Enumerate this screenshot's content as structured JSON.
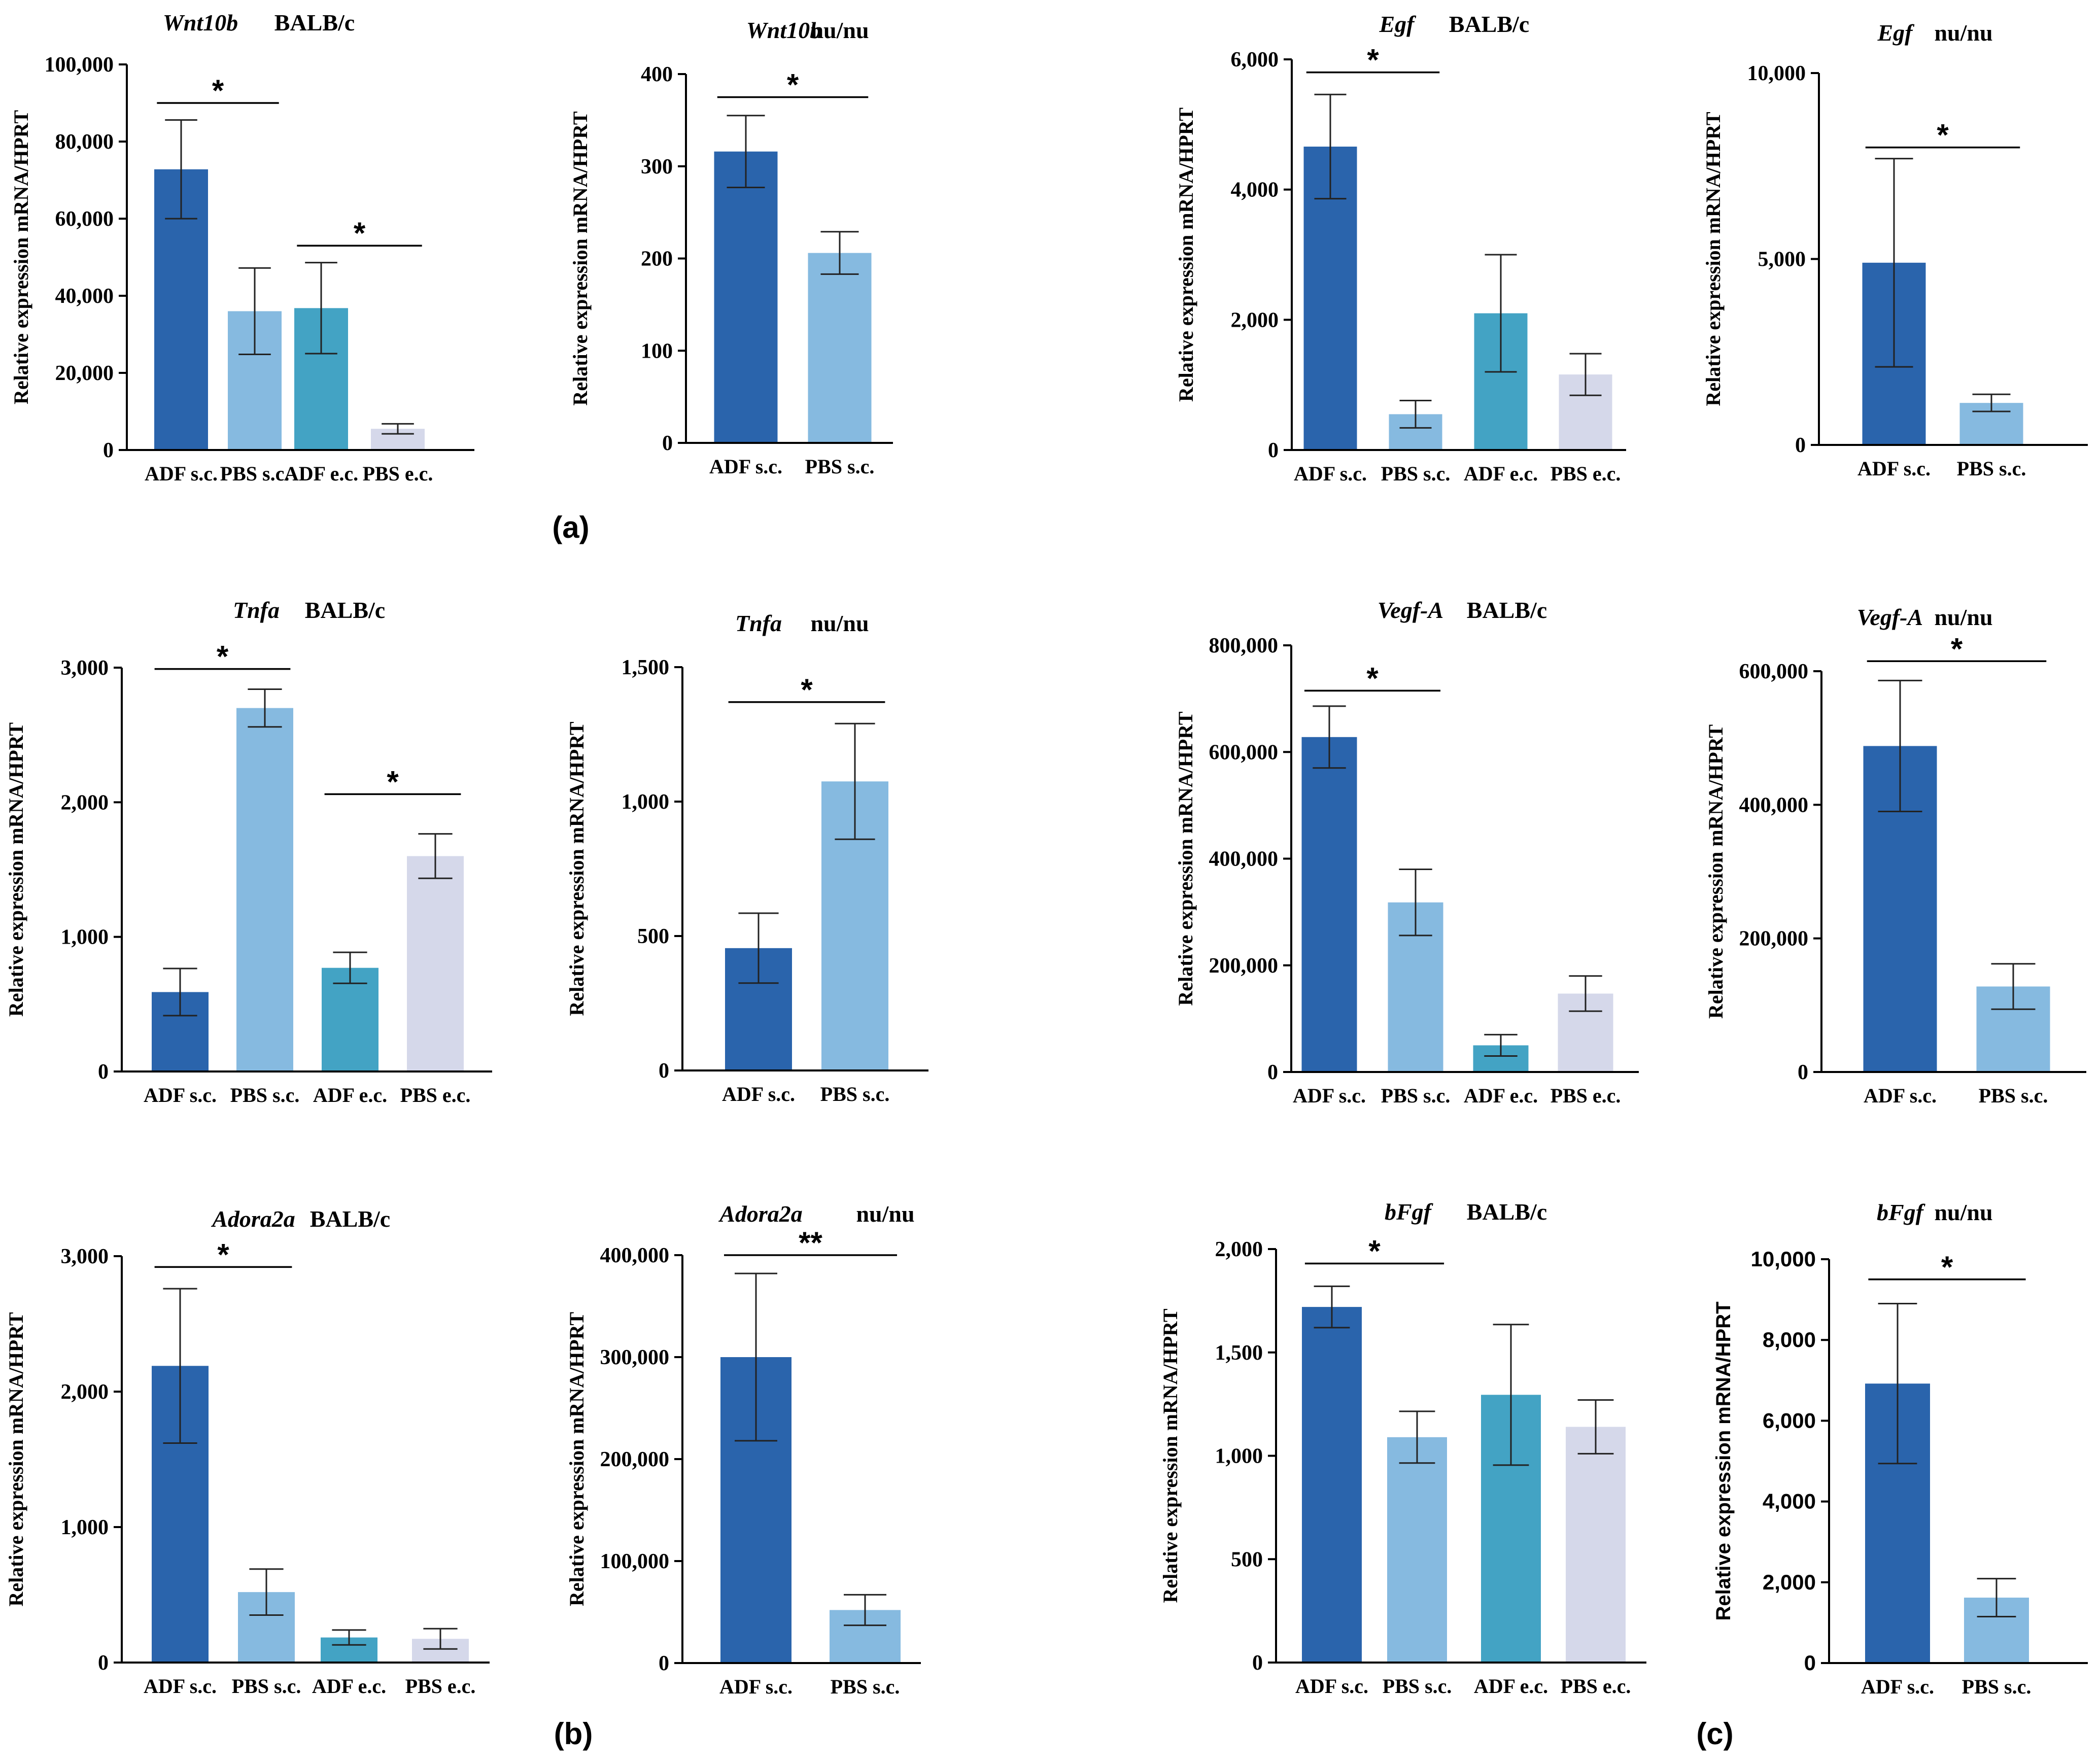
{
  "colors": {
    "ADF s.c.": "#2a64ac",
    "PBS s.c.": "#86bae0",
    "ADF e.c.": "#43a3c4",
    "PBS e.c.": "#d5d8ea"
  },
  "panel_labels": [
    "(a)",
    "(b)",
    "(c)"
  ],
  "chart_data": [
    {
      "id": "wnt10b-balbc",
      "type": "bar",
      "gene": "Wnt10b",
      "strain": "BALB/c",
      "ylabel": "Relative expression mRNA/HPRT",
      "categories": [
        "ADF s.c.",
        "PBS s.c.",
        "ADF e.c.",
        "PBS e.c."
      ],
      "values": [
        72800,
        36000,
        36800,
        5500
      ],
      "errors": [
        12800,
        11200,
        11800,
        1300
      ],
      "ylim": [
        0,
        100000
      ],
      "yticks": [
        "0",
        "20,000",
        "40,000",
        "60,000",
        "80,000",
        "100,000"
      ],
      "tick_values": [
        0,
        20000,
        40000,
        60000,
        80000,
        100000
      ],
      "significance": [
        {
          "from": 0,
          "to": 1,
          "label": "*",
          "y": 90000
        },
        {
          "from": 2,
          "to": 3,
          "label": "*",
          "y": 53000
        }
      ]
    },
    {
      "id": "wnt10b-nunu",
      "type": "bar",
      "gene": "Wnt10b",
      "strain": "nu/nu",
      "ylabel": "Relative expression mRNA/HPRT",
      "categories": [
        "ADF s.c.",
        "PBS s.c."
      ],
      "values": [
        316,
        206
      ],
      "errors": [
        39,
        23
      ],
      "ylim": [
        0,
        400
      ],
      "yticks": [
        "0",
        "100",
        "200",
        "300",
        "400"
      ],
      "tick_values": [
        0,
        100,
        200,
        300,
        400
      ],
      "significance": [
        {
          "from": 0,
          "to": 1,
          "label": "*",
          "y": 375
        }
      ]
    },
    {
      "id": "egf-balbc",
      "type": "bar",
      "gene": "Egf",
      "strain": "BALB/c",
      "ylabel": "Relative expression mRNA/HPRT",
      "categories": [
        "ADF s.c.",
        "PBS s.c.",
        "ADF e.c.",
        "PBS e.c."
      ],
      "values": [
        4660,
        550,
        2100,
        1160
      ],
      "errors": [
        800,
        210,
        900,
        320
      ],
      "ylim": [
        0,
        6000
      ],
      "yticks": [
        "0",
        "2,000",
        "4,000",
        "6,000"
      ],
      "tick_values": [
        0,
        2000,
        4000,
        6000
      ],
      "significance": [
        {
          "from": 0,
          "to": 1,
          "label": "*",
          "y": 5800
        }
      ]
    },
    {
      "id": "egf-nunu",
      "type": "bar",
      "gene": "Egf",
      "strain": "nu/nu",
      "ylabel": "Relative expression mRNA/HPRT",
      "categories": [
        "ADF s.c.",
        "PBS s.c."
      ],
      "values": [
        4900,
        1130
      ],
      "errors": [
        2800,
        230
      ],
      "ylim": [
        0,
        10000
      ],
      "yticks": [
        "0",
        "5,000",
        "10,000"
      ],
      "tick_values": [
        0,
        5000,
        10000
      ],
      "significance": [
        {
          "from": 0,
          "to": 1,
          "label": "*",
          "y": 8000
        }
      ]
    },
    {
      "id": "tnfa-balbc",
      "type": "bar",
      "gene": "Tnfa",
      "strain": "BALB/c",
      "ylabel": "Relative expression mRNA/HPRT",
      "categories": [
        "ADF s.c.",
        "PBS s.c.",
        "ADF e.c.",
        "PBS e.c."
      ],
      "values": [
        590,
        2700,
        770,
        1600
      ],
      "errors": [
        175,
        140,
        115,
        165
      ],
      "ylim": [
        0,
        3000
      ],
      "yticks": [
        "0",
        "1,000",
        "2,000",
        "3,000"
      ],
      "tick_values": [
        0,
        1000,
        2000,
        3000
      ],
      "significance": [
        {
          "from": 0,
          "to": 1,
          "label": "*",
          "y": 2990
        },
        {
          "from": 2,
          "to": 3,
          "label": "*",
          "y": 2060
        }
      ]
    },
    {
      "id": "tnfa-nunu",
      "type": "bar",
      "gene": "Tnfa",
      "strain": "nu/nu",
      "ylabel": "Relative expression mRNA/HPRT",
      "categories": [
        "ADF s.c.",
        "PBS s.c."
      ],
      "values": [
        455,
        1075
      ],
      "errors": [
        130,
        215
      ],
      "ylim": [
        0,
        1500
      ],
      "yticks": [
        "0",
        "500",
        "1,000",
        "1,500"
      ],
      "tick_values": [
        0,
        500,
        1000,
        1500
      ],
      "significance": [
        {
          "from": 0,
          "to": 1,
          "label": "*",
          "y": 1370
        }
      ]
    },
    {
      "id": "vegfa-balbc",
      "type": "bar",
      "gene": "Vegf-A",
      "strain": "BALB/c",
      "ylabel": "Relative expression mRNA/HPRT",
      "categories": [
        "ADF s.c.",
        "PBS s.c.",
        "ADF e.c.",
        "PBS e.c."
      ],
      "values": [
        628000,
        318000,
        50000,
        147000
      ],
      "errors": [
        58000,
        62000,
        20000,
        33000
      ],
      "ylim": [
        0,
        800000
      ],
      "yticks": [
        "0",
        "200,000",
        "400,000",
        "600,000",
        "800,000"
      ],
      "tick_values": [
        0,
        200000,
        400000,
        600000,
        800000
      ],
      "significance": [
        {
          "from": 0,
          "to": 1,
          "label": "*",
          "y": 715000
        }
      ]
    },
    {
      "id": "vegfa-nunu",
      "type": "bar",
      "gene": "Vegf-A",
      "strain": "nu/nu",
      "ylabel": "Relative expression mRNA/HPRT",
      "categories": [
        "ADF s.c.",
        "PBS s.c."
      ],
      "values": [
        488000,
        128000
      ],
      "errors": [
        98000,
        34000
      ],
      "ylim": [
        0,
        600000
      ],
      "yticks": [
        "0",
        "200,000",
        "400,000",
        "600,000"
      ],
      "tick_values": [
        0,
        200000,
        400000,
        600000
      ],
      "significance": [
        {
          "from": 0,
          "to": 1,
          "label": "*",
          "y": 615000
        }
      ]
    },
    {
      "id": "adora2a-balbc",
      "type": "bar",
      "gene": "Adora2a",
      "strain": "BALB/c",
      "ylabel": "Relative expression mRNA/HPRT",
      "categories": [
        "ADF s.c.",
        "PBS s.c.",
        "ADF e.c.",
        "PBS e.c."
      ],
      "values": [
        2190,
        520,
        185,
        175
      ],
      "errors": [
        570,
        170,
        55,
        75
      ],
      "ylim": [
        0,
        3000
      ],
      "yticks": [
        "0",
        "1,000",
        "2,000",
        "3,000"
      ],
      "tick_values": [
        0,
        1000,
        2000,
        3000
      ],
      "significance": [
        {
          "from": 0,
          "to": 1,
          "label": "*",
          "y": 2920
        }
      ]
    },
    {
      "id": "adora2a-nunu",
      "type": "bar",
      "gene": "Adora2a",
      "strain": "nu/nu",
      "ylabel": "Relative expression mRNA/HPRT",
      "categories": [
        "ADF s.c.",
        "PBS s.c."
      ],
      "values": [
        300000,
        52000
      ],
      "errors": [
        82000,
        15000
      ],
      "ylim": [
        0,
        400000
      ],
      "yticks": [
        "0",
        "100,000",
        "200,000",
        "300,000",
        "400,000"
      ],
      "tick_values": [
        0,
        100000,
        200000,
        300000,
        400000
      ],
      "significance": [
        {
          "from": 0,
          "to": 1,
          "label": "**",
          "y": 400000
        }
      ]
    },
    {
      "id": "bfgf-balbc",
      "type": "bar",
      "gene": "bFgf",
      "strain": "BALB/c",
      "ylabel": "Relative expression mRNA/HPRT",
      "categories": [
        "ADF s.c.",
        "PBS s.c.",
        "ADF e.c.",
        "PBS e.c."
      ],
      "values": [
        1720,
        1090,
        1295,
        1140
      ],
      "errors": [
        100,
        125,
        340,
        130
      ],
      "ylim": [
        0,
        2000
      ],
      "yticks": [
        "0",
        "500",
        "1,000",
        "1,500",
        "2,000"
      ],
      "tick_values": [
        0,
        500,
        1000,
        1500,
        2000
      ],
      "significance": [
        {
          "from": 0,
          "to": 1,
          "label": "*",
          "y": 1930
        }
      ]
    },
    {
      "id": "bfgf-nunu",
      "type": "bar",
      "gene": "bFgf",
      "strain": "nu/nu",
      "ylabel": "Relative expression mRNA/HPRT",
      "categories": [
        "ADF s.c.",
        "PBS s.c."
      ],
      "values": [
        6920,
        1620
      ],
      "errors": [
        1980,
        470
      ],
      "ylim": [
        0,
        10000
      ],
      "yticks": [
        "0",
        "2,000",
        "4,000",
        "6,000",
        "8,000",
        "10,000"
      ],
      "tick_values": [
        0,
        2000,
        4000,
        6000,
        8000,
        10000
      ],
      "significance": [
        {
          "from": 0,
          "to": 1,
          "label": "*",
          "y": 9500
        }
      ]
    }
  ]
}
